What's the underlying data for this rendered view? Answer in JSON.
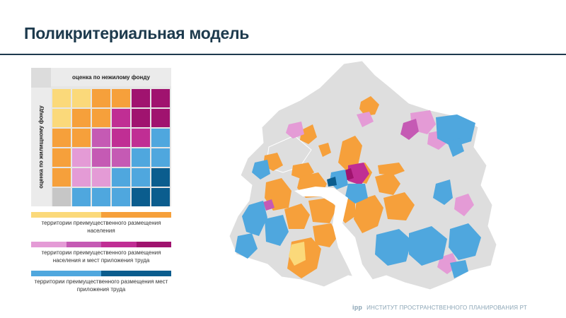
{
  "title": "Поликритериальная модель",
  "matrix": {
    "top_label": "оценка по нежилому фонду",
    "side_label": "оценка по жилищному фонду",
    "cells": [
      [
        "#fbd97a",
        "#fbd97a",
        "#f6a03b",
        "#f6a03b",
        "#a0136f",
        "#a0136f"
      ],
      [
        "#fbd97a",
        "#f6a03b",
        "#f6a03b",
        "#c02e94",
        "#a0136f",
        "#a0136f"
      ],
      [
        "#f6a03b",
        "#f6a03b",
        "#c55ab4",
        "#c02e94",
        "#c02e94",
        "#4fa7de"
      ],
      [
        "#f6a03b",
        "#e49bd6",
        "#c55ab4",
        "#c55ab4",
        "#4fa7de",
        "#4fa7de"
      ],
      [
        "#f6a03b",
        "#e49bd6",
        "#e49bd6",
        "#4fa7de",
        "#4fa7de",
        "#0b5d8e"
      ],
      [
        "#c6c6c6",
        "#4fa7de",
        "#4fa7de",
        "#4fa7de",
        "#0b5d8e",
        "#0b5d8e"
      ]
    ]
  },
  "legend": [
    {
      "colors": [
        "#fbd97a",
        "#f6a03b"
      ],
      "text": "территории преимущественного размещения населения"
    },
    {
      "colors": [
        "#e49bd6",
        "#c55ab4",
        "#c02e94",
        "#a0136f"
      ],
      "text": "территории преимущественного размещения населения и мест приложения труда"
    },
    {
      "colors": [
        "#4fa7de",
        "#0b5d8e"
      ],
      "text": "территории преимущественного размещения мест приложения труда"
    }
  ],
  "footer": {
    "logo": "ipp",
    "text": "ИНСТИТУТ ПРОСТРАНСТВЕННОГО ПЛАНИРОВАНИЯ РТ"
  },
  "colors": {
    "yellow": "#fbd97a",
    "orange": "#f6a03b",
    "pink": "#e49bd6",
    "violet": "#c55ab4",
    "magenta": "#c02e94",
    "purple": "#a0136f",
    "blue": "#4fa7de",
    "darkblue": "#0b5d8e",
    "grey": "#dedede",
    "water": "#ffffff"
  }
}
